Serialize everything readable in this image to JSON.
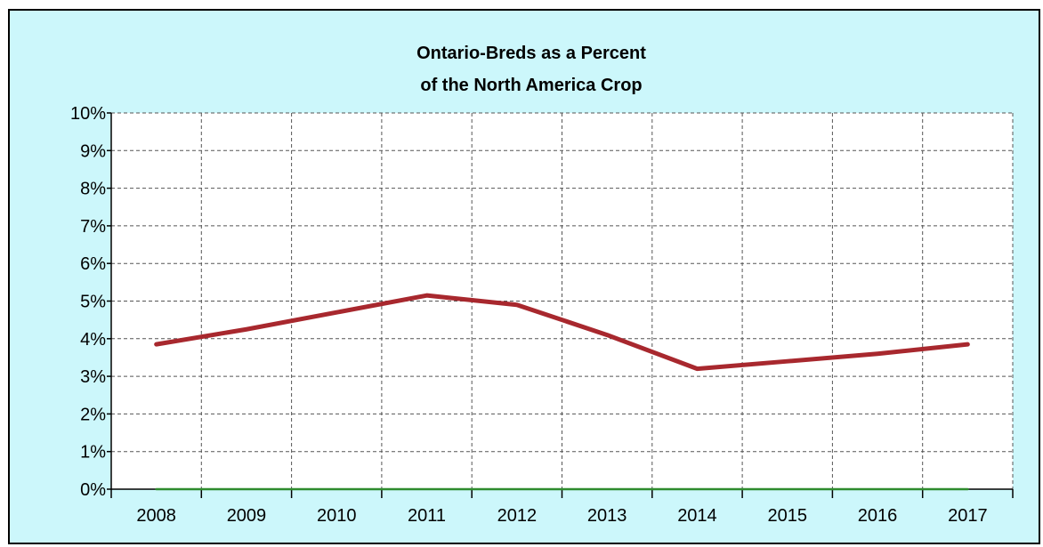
{
  "chart_data": {
    "type": "line",
    "title_lines": [
      "Ontario-Breds as a Percent",
      "of the North America Crop"
    ],
    "xlabel": "",
    "ylabel": "",
    "categories": [
      "2008",
      "2009",
      "2010",
      "2011",
      "2012",
      "2013",
      "2014",
      "2015",
      "2016",
      "2017"
    ],
    "y_ticks": [
      "0%",
      "1%",
      "2%",
      "3%",
      "4%",
      "5%",
      "6%",
      "7%",
      "8%",
      "9%",
      "10%"
    ],
    "ylim": [
      0,
      10
    ],
    "grid": true,
    "legend": "none",
    "series": [
      {
        "color": "#a8282e",
        "values": [
          3.85,
          4.25,
          4.7,
          5.15,
          4.9,
          4.1,
          3.2,
          3.4,
          3.6,
          3.85
        ]
      },
      {
        "color": "#2e8b2e",
        "values": [
          0,
          0,
          0,
          0,
          0,
          0,
          0,
          0,
          0,
          0
        ]
      }
    ],
    "background_color": "#ccf7fb",
    "plot_background_color": "#ffffff"
  }
}
